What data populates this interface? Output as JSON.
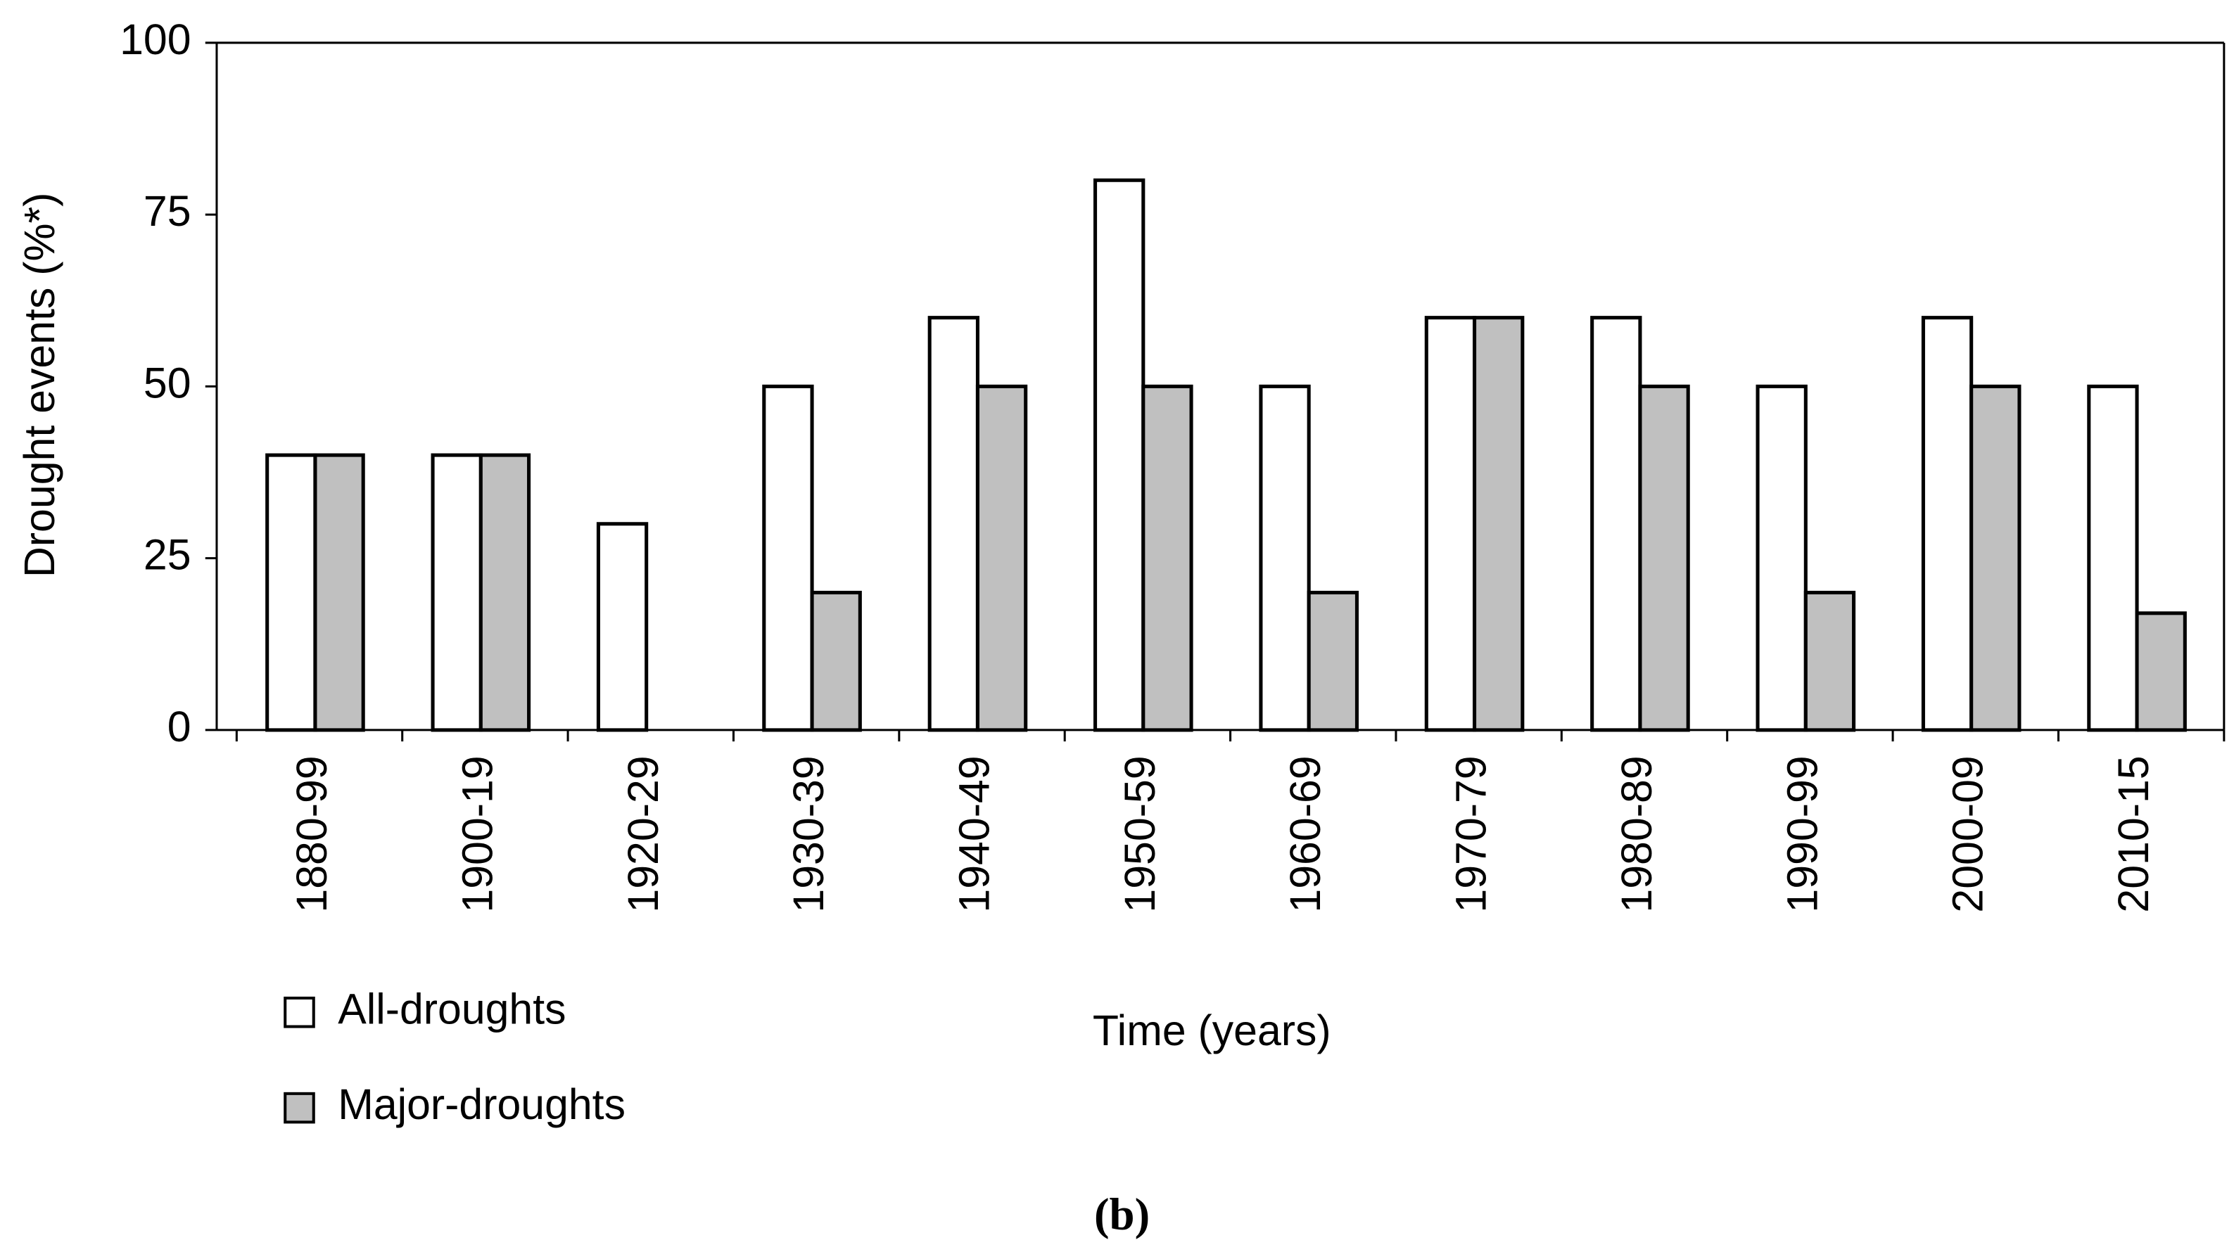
{
  "chart_data": {
    "type": "bar",
    "caption": "(b)",
    "x_label": "Time (years)",
    "y_label": "Drought events (%*)",
    "categories": [
      "1880-99",
      "1900-19",
      "1920-29",
      "1930-39",
      "1940-49",
      "1950-59",
      "1960-69",
      "1970-79",
      "1980-89",
      "1990-99",
      "2000-09",
      "2010-15"
    ],
    "series": [
      {
        "name": "All-droughts",
        "color": "#ffffff",
        "values": [
          40,
          40,
          30,
          50,
          60,
          80,
          50,
          60,
          60,
          50,
          60,
          50
        ]
      },
      {
        "name": "Major-droughts",
        "color": "#c0c0c0",
        "values": [
          40,
          40,
          0,
          20,
          50,
          50,
          20,
          60,
          50,
          20,
          50,
          17
        ]
      }
    ],
    "ylim": [
      0,
      100
    ],
    "yticks": [
      0,
      25,
      50,
      75,
      100
    ],
    "grid": false
  }
}
